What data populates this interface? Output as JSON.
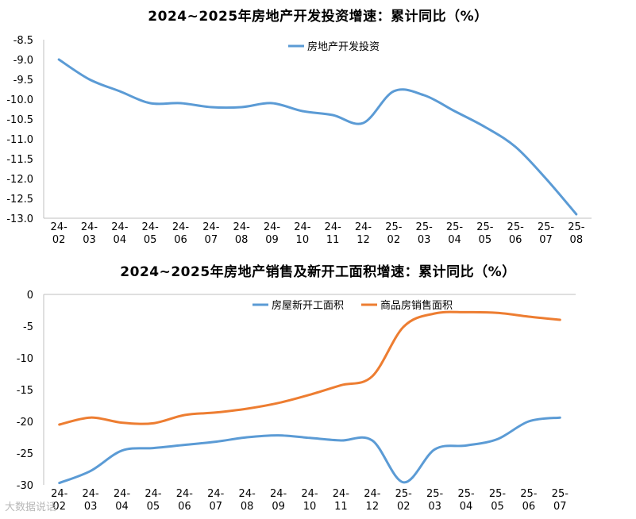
{
  "watermark": "大数据说话",
  "chart_data": [
    {
      "type": "line",
      "title": "2024~2025年房地产开发投资增速：累计同比（%）",
      "categories": [
        "24-02",
        "24-03",
        "24-04",
        "24-05",
        "24-06",
        "24-07",
        "24-08",
        "24-09",
        "24-10",
        "24-11",
        "24-12",
        "25-02",
        "25-03",
        "25-04",
        "25-05",
        "25-06",
        "25-07",
        "25-08"
      ],
      "ylim": [
        -13.0,
        -8.5
      ],
      "yticks": [
        "-8.5",
        "-9.0",
        "-9.5",
        "-10.0",
        "-10.5",
        "-11.0",
        "-11.5",
        "-12.0",
        "-12.5",
        "-13.0"
      ],
      "legend_position": "top",
      "series": [
        {
          "name": "房地产开发投资",
          "color": "#5b9bd5",
          "values": [
            -9.0,
            -9.5,
            -9.8,
            -10.1,
            -10.1,
            -10.2,
            -10.2,
            -10.1,
            -10.3,
            -10.4,
            -10.6,
            -9.8,
            -9.9,
            -10.3,
            -10.7,
            -11.2,
            -12.0,
            -12.9
          ]
        }
      ]
    },
    {
      "type": "line",
      "title": "2024~2025年房地产销售及新开工面积增速：累计同比（%）",
      "categories": [
        "24-02",
        "24-03",
        "24-04",
        "24-05",
        "24-06",
        "24-07",
        "24-08",
        "24-09",
        "24-10",
        "24-11",
        "24-12",
        "25-02",
        "25-03",
        "25-04",
        "25-05",
        "25-06",
        "25-07"
      ],
      "ylim": [
        -30,
        0
      ],
      "yticks": [
        "0",
        "-5",
        "-10",
        "-15",
        "-20",
        "-25",
        "-30"
      ],
      "legend_position": "top",
      "series": [
        {
          "name": "房屋新开工面积",
          "color": "#5b9bd5",
          "values": [
            -29.7,
            -27.8,
            -24.6,
            -24.2,
            -23.7,
            -23.2,
            -22.5,
            -22.2,
            -22.6,
            -23.0,
            -23.0,
            -29.6,
            -24.4,
            -23.8,
            -22.8,
            -20.0,
            -19.4
          ]
        },
        {
          "name": "商品房销售面积",
          "color": "#ed7d31",
          "values": [
            -20.5,
            -19.4,
            -20.2,
            -20.3,
            -19.0,
            -18.6,
            -18.0,
            -17.1,
            -15.8,
            -14.3,
            -12.9,
            -5.1,
            -3.0,
            -2.8,
            -2.9,
            -3.5,
            -4.0
          ]
        }
      ]
    }
  ]
}
